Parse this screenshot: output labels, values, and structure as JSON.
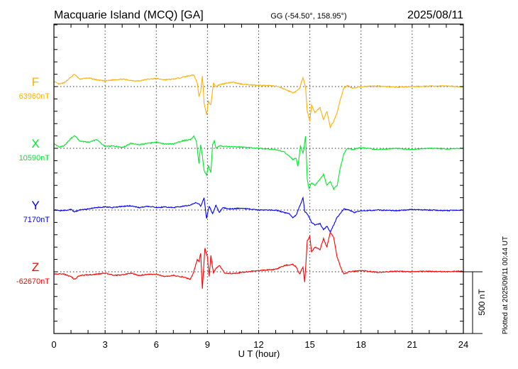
{
  "header": {
    "station": "Macquarie Island (MCQ)  [GA]",
    "coords": "GG (-54.50°, 158.95°)",
    "date": "2025/08/11"
  },
  "footer": {
    "plotted_at": "Plotted at 2025/09/11 00:44 UT"
  },
  "chart_data": {
    "type": "line",
    "title": "Macquarie Island (MCQ)  [GA]",
    "xlabel": "U T (hour)",
    "ylabel": "",
    "xlim": [
      0,
      24
    ],
    "xticks": [
      0,
      3,
      6,
      9,
      12,
      15,
      18,
      21,
      24
    ],
    "xtick_labels": [
      "0",
      "3",
      "6",
      "9",
      "12",
      "15",
      "18",
      "21",
      "24"
    ],
    "y_tick_interval_nT": 100,
    "scale_bar": {
      "value_nT": 500,
      "label": "500 nT"
    },
    "grid": true,
    "series": [
      {
        "name": "F",
        "baseline_label": "63960nT",
        "baseline_nT": 63960,
        "color": "#ffb000",
        "points": [
          [
            0,
            40
          ],
          [
            0.3,
            20
          ],
          [
            0.6,
            30
          ],
          [
            1.2,
            100
          ],
          [
            1.5,
            60
          ],
          [
            2,
            70
          ],
          [
            2.5,
            55
          ],
          [
            3,
            45
          ],
          [
            3.5,
            55
          ],
          [
            4,
            60
          ],
          [
            4.5,
            50
          ],
          [
            5,
            45
          ],
          [
            5.5,
            60
          ],
          [
            6,
            65
          ],
          [
            6.5,
            55
          ],
          [
            7,
            60
          ],
          [
            7.5,
            75
          ],
          [
            8,
            90
          ],
          [
            8.2,
            95
          ],
          [
            8.4,
            30
          ],
          [
            8.5,
            -80
          ],
          [
            8.6,
            -40
          ],
          [
            8.7,
            90
          ],
          [
            8.8,
            -130
          ],
          [
            8.95,
            -230
          ],
          [
            9.05,
            -120
          ],
          [
            9.2,
            -150
          ],
          [
            9.35,
            30
          ],
          [
            9.5,
            0
          ],
          [
            9.7,
            15
          ],
          [
            10,
            25
          ],
          [
            10.5,
            35
          ],
          [
            11,
            20
          ],
          [
            12,
            10
          ],
          [
            13,
            5
          ],
          [
            13.5,
            -20
          ],
          [
            14,
            -50
          ],
          [
            14.2,
            -40
          ],
          [
            14.4,
            -10
          ],
          [
            14.6,
            70
          ],
          [
            14.75,
            -10
          ],
          [
            14.85,
            -200
          ],
          [
            15.0,
            -280
          ],
          [
            15.1,
            -150
          ],
          [
            15.3,
            -210
          ],
          [
            15.6,
            -170
          ],
          [
            15.8,
            -270
          ],
          [
            16.0,
            -200
          ],
          [
            16.2,
            -330
          ],
          [
            16.4,
            -280
          ],
          [
            16.6,
            -210
          ],
          [
            16.8,
            -100
          ],
          [
            17,
            -10
          ],
          [
            17.2,
            10
          ],
          [
            17.5,
            -15
          ],
          [
            18,
            0
          ],
          [
            19,
            5
          ],
          [
            20,
            -5
          ],
          [
            21,
            0
          ],
          [
            22,
            3
          ],
          [
            23,
            5
          ],
          [
            24,
            -3
          ]
        ]
      },
      {
        "name": "X",
        "baseline_label": "10590nT",
        "baseline_nT": 10590,
        "color": "#00e82a",
        "points": [
          [
            0,
            40
          ],
          [
            0.3,
            10
          ],
          [
            0.6,
            20
          ],
          [
            1.0,
            80
          ],
          [
            1.2,
            105
          ],
          [
            1.5,
            60
          ],
          [
            2,
            50
          ],
          [
            2.5,
            70
          ],
          [
            3,
            15
          ],
          [
            3.5,
            20
          ],
          [
            4,
            5
          ],
          [
            4.5,
            40
          ],
          [
            5,
            30
          ],
          [
            5.5,
            40
          ],
          [
            6,
            50
          ],
          [
            6.5,
            35
          ],
          [
            7,
            35
          ],
          [
            7.5,
            60
          ],
          [
            8,
            70
          ],
          [
            8.2,
            100
          ],
          [
            8.35,
            60
          ],
          [
            8.5,
            -120
          ],
          [
            8.6,
            30
          ],
          [
            8.7,
            -60
          ],
          [
            8.8,
            -180
          ],
          [
            8.95,
            -220
          ],
          [
            9.05,
            -140
          ],
          [
            9.2,
            -200
          ],
          [
            9.3,
            30
          ],
          [
            9.4,
            60
          ],
          [
            9.5,
            0
          ],
          [
            9.7,
            20
          ],
          [
            10,
            15
          ],
          [
            11,
            10
          ],
          [
            12,
            0
          ],
          [
            13,
            -10
          ],
          [
            13.5,
            -30
          ],
          [
            14,
            -90
          ],
          [
            14.2,
            -80
          ],
          [
            14.3,
            -150
          ],
          [
            14.45,
            20
          ],
          [
            14.6,
            -40
          ],
          [
            14.65,
            -10
          ],
          [
            14.75,
            100
          ],
          [
            14.85,
            -250
          ],
          [
            14.95,
            -330
          ],
          [
            15.1,
            -280
          ],
          [
            15.3,
            -300
          ],
          [
            15.6,
            -250
          ],
          [
            15.8,
            -210
          ],
          [
            16,
            -300
          ],
          [
            16.2,
            -270
          ],
          [
            16.4,
            -330
          ],
          [
            16.6,
            -300
          ],
          [
            16.8,
            -150
          ],
          [
            17,
            -40
          ],
          [
            17.2,
            0
          ],
          [
            17.5,
            -10
          ],
          [
            18,
            5
          ],
          [
            19,
            -10
          ],
          [
            20,
            0
          ],
          [
            21,
            -10
          ],
          [
            22,
            0
          ],
          [
            23,
            -5
          ],
          [
            24,
            0
          ]
        ]
      },
      {
        "name": "Y",
        "baseline_label": "7170nT",
        "baseline_nT": 7170,
        "color": "#0000ff",
        "points": [
          [
            0,
            0
          ],
          [
            0.5,
            -5
          ],
          [
            1,
            5
          ],
          [
            1.2,
            -15
          ],
          [
            1.5,
            0
          ],
          [
            2,
            10
          ],
          [
            2.5,
            20
          ],
          [
            3,
            25
          ],
          [
            3.5,
            20
          ],
          [
            4,
            30
          ],
          [
            4.5,
            35
          ],
          [
            5,
            20
          ],
          [
            5.5,
            30
          ],
          [
            6,
            20
          ],
          [
            6.5,
            25
          ],
          [
            7,
            20
          ],
          [
            7.5,
            30
          ],
          [
            8,
            40
          ],
          [
            8.3,
            60
          ],
          [
            8.5,
            50
          ],
          [
            8.6,
            30
          ],
          [
            8.8,
            100
          ],
          [
            8.9,
            -20
          ],
          [
            8.95,
            -70
          ],
          [
            9.1,
            30
          ],
          [
            9.3,
            -30
          ],
          [
            9.5,
            40
          ],
          [
            9.7,
            -20
          ],
          [
            9.9,
            20
          ],
          [
            10.2,
            10
          ],
          [
            11,
            15
          ],
          [
            12,
            0
          ],
          [
            13,
            0
          ],
          [
            13.5,
            -20
          ],
          [
            13.8,
            -30
          ],
          [
            14,
            -60
          ],
          [
            14.2,
            -40
          ],
          [
            14.4,
            30
          ],
          [
            14.6,
            100
          ],
          [
            14.7,
            -10
          ],
          [
            14.9,
            -40
          ],
          [
            15.1,
            -100
          ],
          [
            15.3,
            -120
          ],
          [
            15.6,
            -110
          ],
          [
            15.8,
            -160
          ],
          [
            16,
            -130
          ],
          [
            16.2,
            -180
          ],
          [
            16.4,
            -120
          ],
          [
            16.6,
            -60
          ],
          [
            17,
            10
          ],
          [
            17.3,
            0
          ],
          [
            17.6,
            -20
          ],
          [
            18,
            -5
          ],
          [
            19,
            0
          ],
          [
            20,
            -5
          ],
          [
            21,
            5
          ],
          [
            22,
            0
          ],
          [
            23,
            -5
          ],
          [
            24,
            0
          ]
        ]
      },
      {
        "name": "Z",
        "baseline_label": "-62670nT",
        "baseline_nT": -62670,
        "color": "#ff0000",
        "points": [
          [
            0,
            -20
          ],
          [
            0.5,
            -15
          ],
          [
            1,
            -40
          ],
          [
            1.2,
            -60
          ],
          [
            1.5,
            -30
          ],
          [
            2,
            -25
          ],
          [
            2.5,
            -20
          ],
          [
            3,
            -10
          ],
          [
            3.5,
            -30
          ],
          [
            4,
            -25
          ],
          [
            4.5,
            -10
          ],
          [
            5,
            -30
          ],
          [
            5.5,
            -20
          ],
          [
            6,
            -20
          ],
          [
            6.5,
            -40
          ],
          [
            7,
            -30
          ],
          [
            7.5,
            -40
          ],
          [
            8,
            -60
          ],
          [
            8.2,
            0
          ],
          [
            8.4,
            100
          ],
          [
            8.5,
            80
          ],
          [
            8.6,
            150
          ],
          [
            8.7,
            -140
          ],
          [
            8.85,
            190
          ],
          [
            9.0,
            120
          ],
          [
            9.1,
            -40
          ],
          [
            9.2,
            130
          ],
          [
            9.35,
            -10
          ],
          [
            9.5,
            30
          ],
          [
            9.7,
            50
          ],
          [
            10,
            -10
          ],
          [
            10.5,
            -15
          ],
          [
            11,
            -5
          ],
          [
            12,
            10
          ],
          [
            13,
            20
          ],
          [
            13.5,
            50
          ],
          [
            14,
            60
          ],
          [
            14.2,
            40
          ],
          [
            14.4,
            -20
          ],
          [
            14.6,
            40
          ],
          [
            14.7,
            -80
          ],
          [
            14.85,
            250
          ],
          [
            15,
            290
          ],
          [
            15.1,
            160
          ],
          [
            15.3,
            200
          ],
          [
            15.6,
            180
          ],
          [
            15.8,
            270
          ],
          [
            16,
            200
          ],
          [
            16.2,
            320
          ],
          [
            16.4,
            280
          ],
          [
            16.6,
            120
          ],
          [
            16.8,
            40
          ],
          [
            17,
            -20
          ],
          [
            17.3,
            0
          ],
          [
            18,
            10
          ],
          [
            19,
            -5
          ],
          [
            20,
            5
          ],
          [
            21,
            0
          ],
          [
            22,
            5
          ],
          [
            23,
            0
          ],
          [
            24,
            5
          ]
        ]
      }
    ]
  }
}
